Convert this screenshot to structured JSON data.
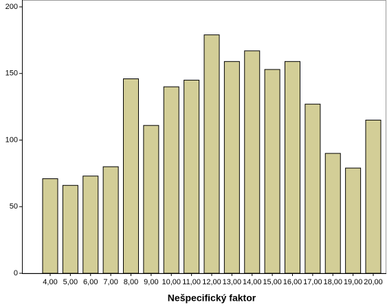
{
  "chart_data": {
    "type": "bar",
    "x_label": "Nešpecifický faktor",
    "categories": [
      "4,00",
      "5,00",
      "6,00",
      "7,00",
      "8,00",
      "9,00",
      "10,00",
      "11,00",
      "12,00",
      "13,00",
      "14,00",
      "15,00",
      "16,00",
      "17,00",
      "18,00",
      "19,00",
      "20,00"
    ],
    "values": [
      71,
      66,
      73,
      80,
      146,
      111,
      140,
      145,
      179,
      159,
      167,
      153,
      159,
      127,
      90,
      79,
      115
    ],
    "color": "#d3ce97",
    "ylim": [
      0,
      200
    ],
    "yticks": [
      0,
      50,
      100,
      150,
      200
    ],
    "grid": false
  }
}
